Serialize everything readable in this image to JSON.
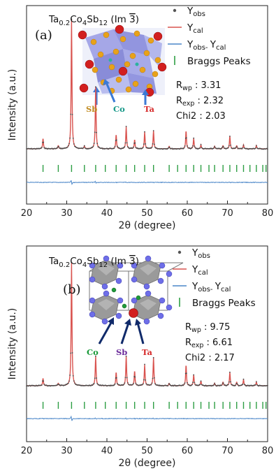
{
  "chart_data": [
    {
      "panel_label": "(a)",
      "type": "line",
      "compound": {
        "main": "Ta",
        "sub1": "0.2",
        "mid1": "Co",
        "sub2": "4",
        "mid2": "Sb",
        "sub3": "12",
        "space_group_open": "(Im ",
        "space_group_bar": "3",
        "space_group_close": ")"
      },
      "xlabel": "2θ (degree)",
      "ylabel": "Intensity (a.u.)",
      "xlim": [
        20,
        80
      ],
      "xticks": [
        "20",
        "30",
        "40",
        "50",
        "60",
        "70",
        "80"
      ],
      "legend": [
        {
          "main": "Y",
          "sub": "obs",
          "marker": "dot",
          "color": "#555555"
        },
        {
          "main": "Y",
          "sub": "cal",
          "marker": "line",
          "color": "#d9534f"
        },
        {
          "main": "Y",
          "sub": "obs- ",
          "main2": "Y",
          "sub2": "cal",
          "marker": "line",
          "color": "#4a86c8"
        },
        {
          "text": "Braggs Peaks",
          "marker": "tick",
          "color": "#2e9e44"
        }
      ],
      "stats": [
        {
          "main": "R",
          "sub": "wp",
          "value": " : 3.31"
        },
        {
          "main": "R",
          "sub": "exp",
          "value": " : 2.32"
        },
        {
          "main": "Chi2",
          "sub": "",
          "value": " : 2.03"
        }
      ],
      "atom_labels": [
        {
          "text": "Sb",
          "color": "#c08a1e"
        },
        {
          "text": "Co",
          "color": "#1a9a8a"
        },
        {
          "text": "Ta",
          "color": "#d62b2b"
        }
      ],
      "peaks": [
        {
          "x": 24.1,
          "h": 0.08
        },
        {
          "x": 27.9,
          "h": 0.025
        },
        {
          "x": 31.2,
          "h": 1.0
        },
        {
          "x": 34.4,
          "h": 0.02
        },
        {
          "x": 37.2,
          "h": 0.48
        },
        {
          "x": 42.3,
          "h": 0.11
        },
        {
          "x": 44.8,
          "h": 0.17
        },
        {
          "x": 46.9,
          "h": 0.07
        },
        {
          "x": 49.4,
          "h": 0.13
        },
        {
          "x": 51.6,
          "h": 0.14
        },
        {
          "x": 55.5,
          "h": 0.02
        },
        {
          "x": 59.7,
          "h": 0.14
        },
        {
          "x": 61.6,
          "h": 0.08
        },
        {
          "x": 63.4,
          "h": 0.03
        },
        {
          "x": 66.8,
          "h": 0.02
        },
        {
          "x": 68.9,
          "h": 0.025
        },
        {
          "x": 70.6,
          "h": 0.1
        },
        {
          "x": 72.3,
          "h": 0.025
        },
        {
          "x": 74.0,
          "h": 0.03
        },
        {
          "x": 77.2,
          "h": 0.025
        }
      ],
      "bragg": [
        24.1,
        27.9,
        31.2,
        34.4,
        37.2,
        39.6,
        42.3,
        44.8,
        46.9,
        49.4,
        51.6,
        55.5,
        57.6,
        59.7,
        61.6,
        63.4,
        65.4,
        66.8,
        68.9,
        70.6,
        72.3,
        74.0,
        75.6,
        77.2,
        78.8,
        79.6
      ]
    },
    {
      "panel_label": "(b)",
      "type": "line",
      "compound": {
        "main": "Ta",
        "sub1": "0.2",
        "mid1": "Co",
        "sub2": "4",
        "mid2": "Sb",
        "sub3": "12",
        "space_group_open": "(Im ",
        "space_group_bar": "3",
        "space_group_close": ")"
      },
      "xlabel": "2θ (degree)",
      "ylabel": "Intensity (a.u.)",
      "xlim": [
        20,
        80
      ],
      "xticks": [
        "20",
        "30",
        "40",
        "50",
        "60",
        "70",
        "80"
      ],
      "legend": [
        {
          "main": "Y",
          "sub": "obs",
          "marker": "dot",
          "color": "#555555"
        },
        {
          "main": "Y",
          "sub": "cal",
          "marker": "line",
          "color": "#d9534f"
        },
        {
          "main": "Y",
          "sub": "obs- ",
          "main2": "Y",
          "sub2": "cal",
          "marker": "line",
          "color": "#4a86c8"
        },
        {
          "text": "Braggs Peaks",
          "marker": "tick",
          "color": "#2e9e44"
        }
      ],
      "stats": [
        {
          "main": "R",
          "sub": "wp",
          "value": " : 9.75"
        },
        {
          "main": "R",
          "sub": "exp",
          "value": " : 6.61"
        },
        {
          "main": "Chi2",
          "sub": "",
          "value": " : 2.17"
        }
      ],
      "atom_labels": [
        {
          "text": "Co",
          "color": "#1a9a3a"
        },
        {
          "text": "Sb",
          "color": "#6a2a9a"
        },
        {
          "text": "Ta",
          "color": "#d62b2b"
        }
      ],
      "peaks": [
        {
          "x": 24.1,
          "h": 0.06
        },
        {
          "x": 27.9,
          "h": 0.02
        },
        {
          "x": 31.2,
          "h": 1.0
        },
        {
          "x": 37.2,
          "h": 0.24
        },
        {
          "x": 42.3,
          "h": 0.11
        },
        {
          "x": 44.8,
          "h": 0.24
        },
        {
          "x": 46.9,
          "h": 0.12
        },
        {
          "x": 49.4,
          "h": 0.17
        },
        {
          "x": 51.6,
          "h": 0.23
        },
        {
          "x": 55.5,
          "h": 0.02
        },
        {
          "x": 59.7,
          "h": 0.17
        },
        {
          "x": 61.6,
          "h": 0.09
        },
        {
          "x": 63.4,
          "h": 0.04
        },
        {
          "x": 66.8,
          "h": 0.02
        },
        {
          "x": 68.9,
          "h": 0.03
        },
        {
          "x": 70.6,
          "h": 0.11
        },
        {
          "x": 72.3,
          "h": 0.03
        },
        {
          "x": 74.0,
          "h": 0.05
        },
        {
          "x": 77.2,
          "h": 0.03
        }
      ],
      "bragg": [
        24.1,
        27.9,
        31.2,
        34.4,
        37.2,
        39.6,
        42.3,
        44.8,
        46.9,
        49.4,
        51.6,
        55.5,
        57.6,
        59.7,
        61.6,
        63.4,
        65.4,
        66.8,
        68.9,
        70.6,
        72.3,
        74.0,
        75.6,
        77.2,
        78.8,
        79.6
      ]
    }
  ]
}
